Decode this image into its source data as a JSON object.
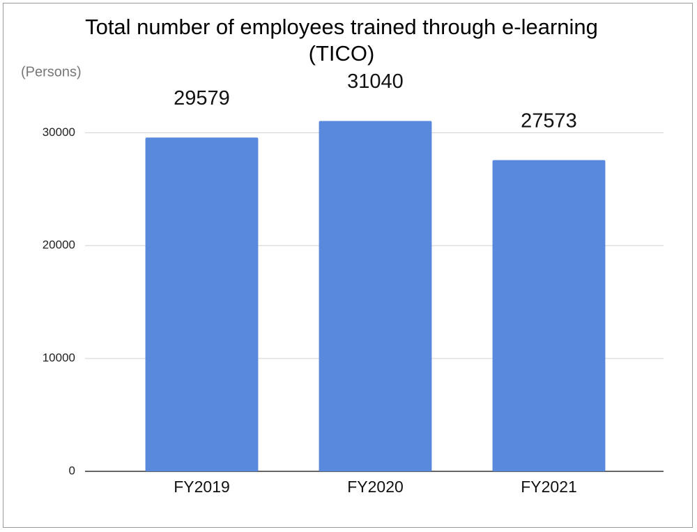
{
  "chart_data": {
    "type": "bar",
    "title": "Total number of employees trained through e-learning (TICO)",
    "ylabel": "(Persons)",
    "categories": [
      "FY2019",
      "FY2020",
      "FY2021"
    ],
    "values": [
      29579,
      31040,
      27573
    ],
    "color": "#5889dd",
    "ylim": [
      0,
      32000
    ],
    "yticks": [
      0,
      10000,
      20000,
      30000
    ],
    "grid": true
  }
}
